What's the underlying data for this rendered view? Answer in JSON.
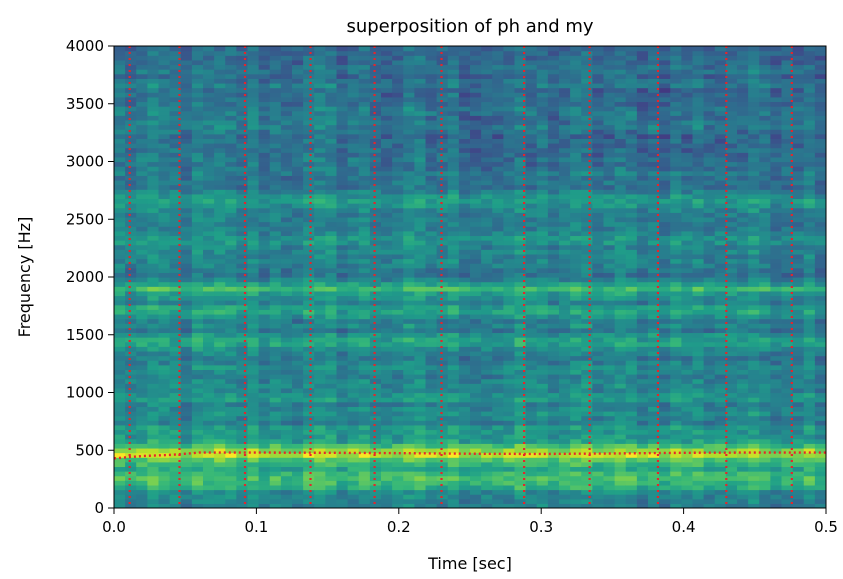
{
  "chart_data": {
    "type": "heatmap",
    "title": "superposition of ph and my",
    "xlabel": "Time [sec]",
    "ylabel": "Frequency [Hz]",
    "xlim": [
      0.0,
      0.5
    ],
    "ylim": [
      0,
      4000
    ],
    "x_ticks": [
      "0.0",
      "0.1",
      "0.2",
      "0.3",
      "0.4",
      "0.5"
    ],
    "y_ticks": [
      "0",
      "500",
      "1000",
      "1500",
      "2000",
      "2500",
      "3000",
      "3500",
      "4000"
    ],
    "colormap": "viridis",
    "grid": false,
    "band_energy": [
      {
        "freq": 250,
        "level": 0.72
      },
      {
        "freq": 470,
        "level": 0.95
      },
      {
        "freq": 620,
        "level": 0.55
      },
      {
        "freq": 950,
        "level": 0.52
      },
      {
        "freq": 1450,
        "level": 0.58
      },
      {
        "freq": 1700,
        "level": 0.6
      },
      {
        "freq": 1900,
        "level": 0.68
      },
      {
        "freq": 2350,
        "level": 0.55
      },
      {
        "freq": 2650,
        "level": 0.55
      }
    ],
    "series": [
      {
        "name": "",
        "style": "dotted",
        "color": "#e8242a",
        "orientation": "vertical",
        "x": [
          0.011,
          0.046,
          0.092,
          0.138,
          0.183,
          0.23,
          0.288,
          0.334,
          0.382,
          0.43,
          0.476
        ]
      },
      {
        "name": "",
        "style": "dotted",
        "color": "#e8242a",
        "orientation": "curve",
        "x": [
          0.0,
          0.02,
          0.04,
          0.06,
          0.1,
          0.15,
          0.2,
          0.25,
          0.3,
          0.35,
          0.4,
          0.45,
          0.5
        ],
        "y": [
          430,
          450,
          460,
          480,
          480,
          478,
          475,
          470,
          468,
          472,
          478,
          480,
          480
        ]
      }
    ]
  }
}
